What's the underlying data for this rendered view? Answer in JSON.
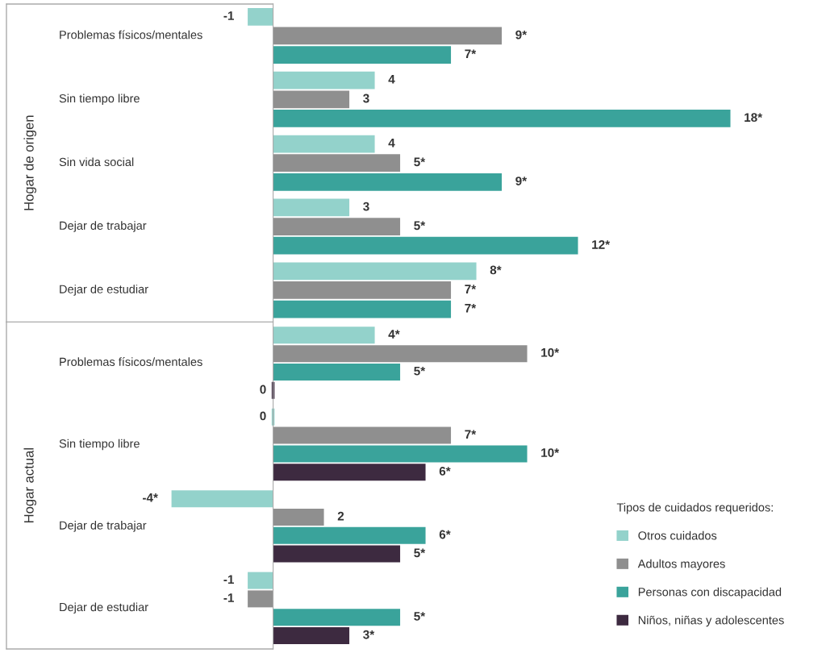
{
  "chart_data": [
    {
      "type": "bar",
      "orientation": "horizontal",
      "ylabel": "Hogar de origen",
      "categories": [
        "Problemas físicos/mentales",
        "Sin tiempo libre",
        "Sin vida social",
        "Dejar de trabajar",
        "Dejar de estudiar"
      ],
      "xlim": [
        -4.4,
        21
      ],
      "tick_labels": "y",
      "legend": false,
      "grid": false,
      "series": [
        {
          "color": "#93d2cb",
          "values": [
            -1,
            4,
            4,
            3,
            8
          ],
          "value_labels": [
            "-1",
            "4",
            "4",
            "3",
            "8*"
          ]
        },
        {
          "color": "#8f8f8f",
          "values": [
            9,
            3,
            5,
            5,
            7
          ],
          "value_labels": [
            "9*",
            "3",
            "5*",
            "5*",
            "7*"
          ]
        },
        {
          "color": "#3aa39b",
          "values": [
            7,
            18,
            9,
            12,
            7
          ],
          "value_labels": [
            "7*",
            "18*",
            "9*",
            "12*",
            "7*"
          ]
        }
      ]
    },
    {
      "type": "bar",
      "orientation": "horizontal",
      "ylabel": "Hogar actual",
      "categories": [
        "Problemas físicos/mentales",
        "Sin tiempo libre",
        "Dejar de trabajar",
        "Dejar de estudiar"
      ],
      "xlim": [
        -4.4,
        21
      ],
      "tick_labels": "y",
      "legend": "bottom right",
      "legend_title": "Tipos de cuidados requeridos:",
      "grid": false,
      "series": [
        {
          "name": "Otros cuidados",
          "color": "#93d2cb",
          "values": [
            4,
            0,
            -4,
            -1
          ],
          "value_labels": [
            "4*",
            "0",
            "-4*",
            "-1"
          ]
        },
        {
          "name": "Adultos mayores",
          "color": "#8f8f8f",
          "values": [
            10,
            7,
            2,
            -1
          ],
          "value_labels": [
            "10*",
            "7*",
            "2",
            "-1"
          ]
        },
        {
          "name": "Personas con discapacidad",
          "color": "#3aa39b",
          "values": [
            5,
            10,
            6,
            5
          ],
          "value_labels": [
            "5*",
            "10*",
            "6*",
            "5*"
          ]
        },
        {
          "name": "Niños, niñas y adolescentes",
          "color": "#3d2a40",
          "values": [
            0,
            6,
            5,
            3
          ],
          "value_labels": [
            "0",
            "6*",
            "5*",
            "3*"
          ]
        }
      ]
    }
  ]
}
